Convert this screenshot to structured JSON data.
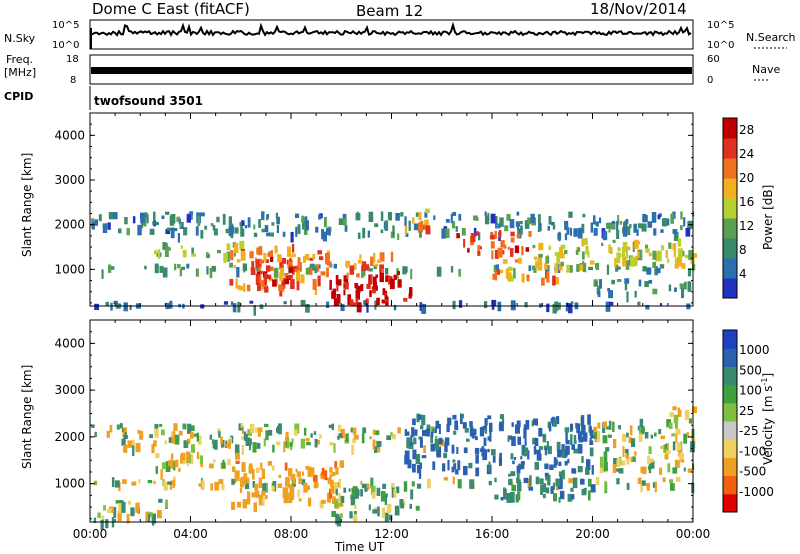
{
  "header": {
    "radar": "Dome C East (fitACF)",
    "beam": "Beam 12",
    "date": "18/Nov/2014"
  },
  "strips": {
    "nsky_label": "N.Sky",
    "nsky_ticks": [
      "10^5",
      "10^0"
    ],
    "nsearch_label": "N.Search",
    "nsearch_ticks": [
      "10^5",
      "10^0"
    ],
    "freq_label_1": "Freq.",
    "freq_label_2": "[MHz]",
    "freq_ticks": [
      "18",
      "8"
    ],
    "nave_label": "Nave",
    "nave_ticks": [
      "60",
      "0"
    ],
    "cpid_label": "CPID",
    "cpid_value": "twofsound 3501"
  },
  "colors": {
    "power": [
      "#2030c0",
      "#2a6fb0",
      "#3a8a6a",
      "#5aa050",
      "#b8d030",
      "#f0b020",
      "#f07020",
      "#e03020",
      "#c00000"
    ],
    "velocity": [
      "#e00000",
      "#f06010",
      "#f0a020",
      "#f0d060",
      "#c8c8c8",
      "#80c040",
      "#40a040",
      "#3a8a70",
      "#2a60b0",
      "#2040c0"
    ]
  },
  "chart_data": [
    {
      "type": "heatmap",
      "title": "",
      "xlabel": "Time UT",
      "ylabel": "Slant Range [km]",
      "x_ticks": [
        "00:00",
        "04:00",
        "08:00",
        "12:00",
        "16:00",
        "20:00",
        "00:00"
      ],
      "x_range_hours": [
        0,
        24
      ],
      "y_ticks": [
        1000,
        2000,
        3000,
        4000
      ],
      "ylim": [
        180,
        4500
      ],
      "colorbar": {
        "label": "Power [dB]",
        "ticks": [
          4,
          8,
          12,
          16,
          20,
          24,
          28
        ],
        "range": [
          0,
          30
        ]
      },
      "regions": [
        {
          "t": [
            0,
            24
          ],
          "r": [
            1800,
            2300
          ],
          "value": 7
        },
        {
          "t": [
            0,
            24
          ],
          "r": [
            1000,
            1150
          ],
          "value": 9
        },
        {
          "t": [
            0,
            24
          ],
          "r": [
            200,
            320
          ],
          "value": 5
        },
        {
          "t": [
            2.5,
            6
          ],
          "r": [
            1350,
            1650
          ],
          "value": 13
        },
        {
          "t": [
            5.5,
            9.5
          ],
          "r": [
            600,
            1600
          ],
          "value": 21
        },
        {
          "t": [
            6.5,
            8.5
          ],
          "r": [
            700,
            1300
          ],
          "value": 26
        },
        {
          "t": [
            9.5,
            12.8
          ],
          "r": [
            250,
            1000
          ],
          "value": 28
        },
        {
          "t": [
            10,
            12
          ],
          "r": [
            900,
            1400
          ],
          "value": 22
        },
        {
          "t": [
            12.5,
            13.5
          ],
          "r": [
            1900,
            2400
          ],
          "value": 20
        },
        {
          "t": [
            14.5,
            17.5
          ],
          "r": [
            1400,
            1900
          ],
          "value": 24
        },
        {
          "t": [
            16,
            18.5
          ],
          "r": [
            800,
            1300
          ],
          "value": 20
        },
        {
          "t": [
            17.5,
            24
          ],
          "r": [
            1100,
            1700
          ],
          "value": 15
        },
        {
          "t": [
            20,
            24
          ],
          "r": [
            500,
            800
          ],
          "value": 8
        }
      ]
    },
    {
      "type": "heatmap",
      "title": "",
      "xlabel": "Time UT",
      "ylabel": "Slant Range [km]",
      "x_ticks": [
        "00:00",
        "04:00",
        "08:00",
        "12:00",
        "16:00",
        "20:00",
        "00:00"
      ],
      "x_range_hours": [
        0,
        24
      ],
      "y_ticks": [
        1000,
        2000,
        3000,
        4000
      ],
      "ylim": [
        180,
        4500
      ],
      "colorbar": {
        "label": "Velocity [m s^-1]",
        "ticks": [
          "1000",
          "500",
          "100",
          "25",
          "-25",
          "-100",
          "-500",
          "-1000"
        ]
      },
      "regions": [
        {
          "t": [
            0,
            14
          ],
          "r": [
            1800,
            2300
          ],
          "value": 0
        },
        {
          "t": [
            0,
            24
          ],
          "r": [
            1000,
            1150
          ],
          "value": 0
        },
        {
          "t": [
            0,
            3
          ],
          "r": [
            200,
            700
          ],
          "value": 80
        },
        {
          "t": [
            2.5,
            6
          ],
          "r": [
            1300,
            1700
          ],
          "value": -120
        },
        {
          "t": [
            5.5,
            10
          ],
          "r": [
            600,
            1500
          ],
          "value": -300
        },
        {
          "t": [
            9.5,
            13
          ],
          "r": [
            300,
            1000
          ],
          "value": 150
        },
        {
          "t": [
            12.5,
            20
          ],
          "r": [
            1300,
            2500
          ],
          "value": 600
        },
        {
          "t": [
            16,
            20
          ],
          "r": [
            700,
            1300
          ],
          "value": 300
        },
        {
          "t": [
            20,
            24
          ],
          "r": [
            1300,
            2400
          ],
          "value": 0
        },
        {
          "t": [
            23,
            24
          ],
          "r": [
            2300,
            2700
          ],
          "value": -200
        }
      ]
    }
  ],
  "axes": {
    "power_cb_label": "Power [dB]",
    "vel_cb_label_1": "Velocity",
    "vel_cb_label_2": "[m s",
    "vel_cb_label_sup": "-1",
    "vel_cb_label_3": "]",
    "ylabel": "Slant Range [km]",
    "xlabel": "Time UT"
  }
}
